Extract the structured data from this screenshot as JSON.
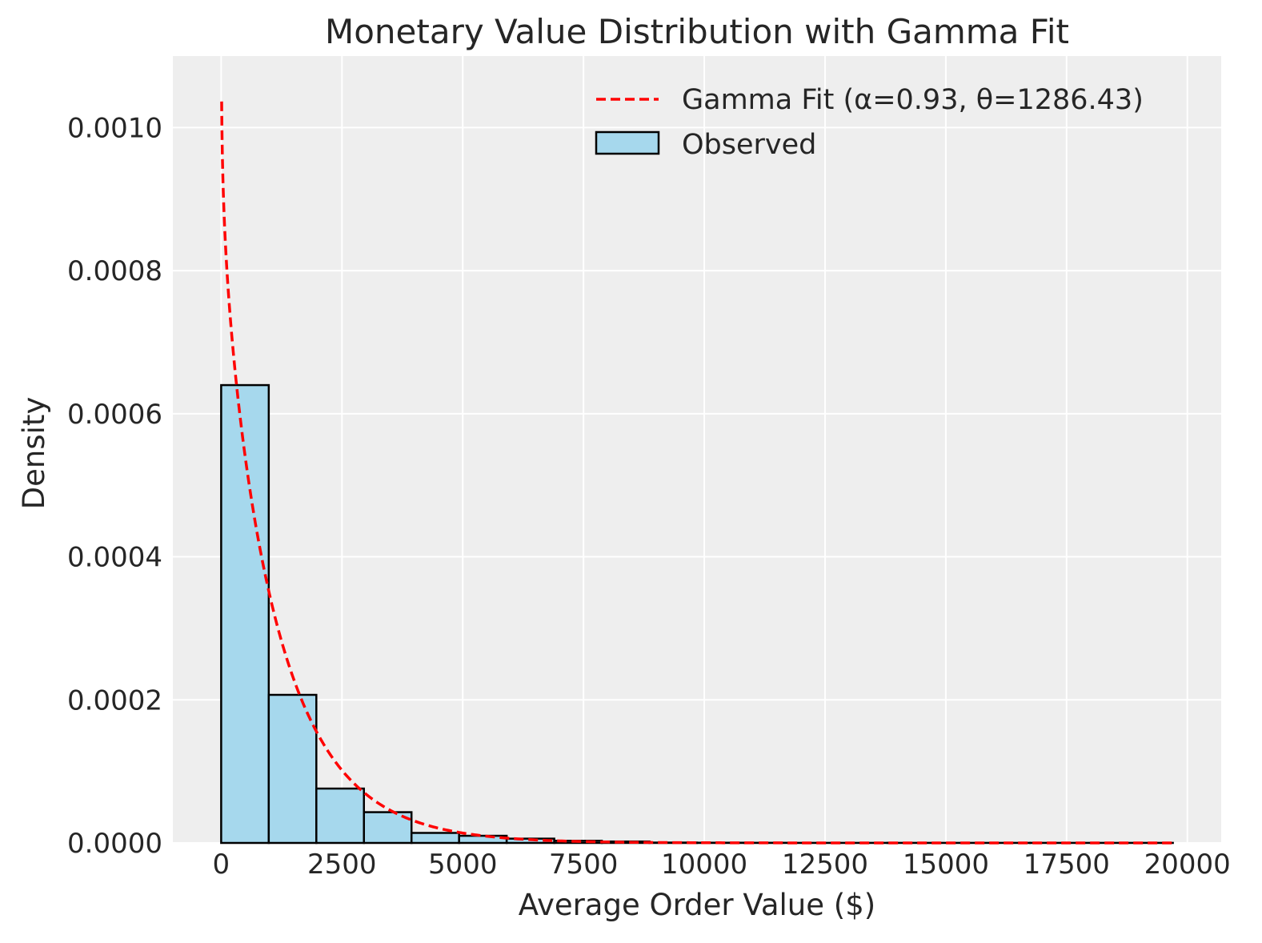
{
  "chart_data": {
    "type": "bar",
    "title": "Monetary Value Distribution with Gamma Fit",
    "xlabel": "Average Order Value ($)",
    "ylabel": "Density",
    "xlim": [
      -1000,
      20700
    ],
    "ylim": [
      0,
      0.0011
    ],
    "grid": true,
    "legend_position": "top-right",
    "x_ticks": [
      0,
      2500,
      5000,
      7500,
      10000,
      12500,
      15000,
      17500,
      20000
    ],
    "x_tick_labels": [
      "0",
      "2500",
      "5000",
      "7500",
      "10000",
      "12500",
      "15000",
      "17500",
      "20000"
    ],
    "y_ticks": [
      0,
      0.0002,
      0.0004,
      0.0006,
      0.0008,
      0.001
    ],
    "y_tick_labels": [
      "0.0000",
      "0.0002",
      "0.0004",
      "0.0006",
      "0.0008",
      "0.0010"
    ],
    "series": [
      {
        "name": "Observed",
        "kind": "histogram",
        "color": "#a6d8ed",
        "edge_color": "#000000",
        "bin_edges": [
          0,
          985,
          1970,
          2955,
          3940,
          4925,
          5910,
          6895,
          7880,
          8865,
          9850,
          10835,
          11820,
          12805,
          13790,
          14775,
          15760,
          16745,
          17730,
          18715,
          19700
        ],
        "values": [
          0.00064,
          0.000207,
          7.6e-05,
          4.3e-05,
          1.4e-05,
          1e-05,
          6e-06,
          3e-06,
          2e-06,
          5e-07,
          3e-07,
          2e-07,
          1e-07,
          1e-07,
          1e-07,
          1e-07,
          1e-07,
          1e-07,
          1e-07,
          1e-07
        ]
      },
      {
        "name": "Gamma Fit (α=0.93, θ=1286.43)",
        "kind": "line",
        "color": "#ff0000",
        "line_style": "dashed",
        "alpha": 0.93,
        "theta": 1286.43,
        "x_range": [
          10,
          19700
        ],
        "y_max_shown": 0.00106
      }
    ]
  }
}
